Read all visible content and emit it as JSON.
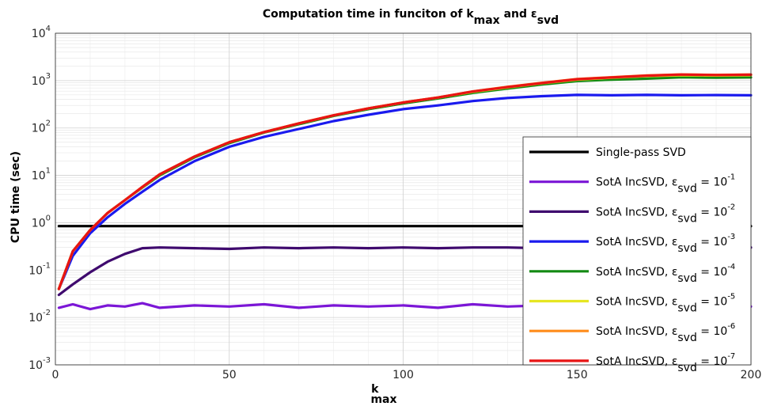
{
  "chart_data": {
    "type": "line",
    "title": {
      "main": "Computation time in funciton of k",
      "sub1": "max",
      "mid": " and ε",
      "sub2": "svd"
    },
    "xlabel": {
      "main": "k",
      "sub": "max"
    },
    "ylabel": "CPU time (sec)",
    "xlim": [
      0,
      200
    ],
    "ylim": [
      0.001,
      10000
    ],
    "yscale": "log",
    "grid": true,
    "legend_position": "right",
    "x_ticks": [
      "0",
      "50",
      "100",
      "150",
      "200"
    ],
    "y_ticks": [
      {
        "base": "10",
        "exp": "-3",
        "value": 0.001
      },
      {
        "base": "10",
        "exp": "-2",
        "value": 0.01
      },
      {
        "base": "10",
        "exp": "-1",
        "value": 0.1
      },
      {
        "base": "10",
        "exp": "0",
        "value": 1
      },
      {
        "base": "10",
        "exp": "1",
        "value": 10
      },
      {
        "base": "10",
        "exp": "2",
        "value": 100
      },
      {
        "base": "10",
        "exp": "3",
        "value": 1000
      },
      {
        "base": "10",
        "exp": "4",
        "value": 10000
      }
    ],
    "x": [
      1,
      5,
      10,
      15,
      20,
      25,
      30,
      40,
      50,
      60,
      70,
      80,
      90,
      100,
      110,
      120,
      130,
      140,
      150,
      160,
      170,
      180,
      190,
      200
    ],
    "series": [
      {
        "label": "Single-pass SVD",
        "sub": "",
        "exp": "",
        "color": "#000000",
        "values": [
          0.85,
          0.85,
          0.85,
          0.85,
          0.85,
          0.85,
          0.85,
          0.85,
          0.85,
          0.85,
          0.85,
          0.85,
          0.85,
          0.85,
          0.85,
          0.85,
          0.85,
          0.85,
          0.85,
          0.85,
          0.85,
          0.85,
          0.85,
          0.85
        ]
      },
      {
        "label": "SotA IncSVD, ε",
        "sub": "svd",
        "exp": "-1",
        "color": "#7b16d6",
        "values": [
          0.016,
          0.019,
          0.015,
          0.018,
          0.017,
          0.02,
          0.016,
          0.018,
          0.017,
          0.019,
          0.016,
          0.018,
          0.017,
          0.018,
          0.016,
          0.019,
          0.017,
          0.018,
          0.017,
          0.019,
          0.017,
          0.018,
          0.018,
          0.017
        ]
      },
      {
        "label": "SotA IncSVD, ε",
        "sub": "svd",
        "exp": "-2",
        "color": "#3f0a6e",
        "values": [
          0.03,
          0.05,
          0.09,
          0.15,
          0.22,
          0.29,
          0.3,
          0.29,
          0.28,
          0.3,
          0.29,
          0.3,
          0.29,
          0.3,
          0.29,
          0.3,
          0.3,
          0.29,
          0.3,
          0.3,
          0.29,
          0.3,
          0.3,
          0.3
        ]
      },
      {
        "label": "SotA IncSVD, ε",
        "sub": "svd",
        "exp": "-3",
        "color": "#1a1aee",
        "values": [
          0.04,
          0.2,
          0.6,
          1.3,
          2.5,
          4.5,
          8,
          20,
          40,
          65,
          95,
          140,
          190,
          250,
          300,
          370,
          430,
          470,
          500,
          490,
          500,
          490,
          495,
          490
        ]
      },
      {
        "label": "SotA IncSVD, ε",
        "sub": "svd",
        "exp": "-4",
        "color": "#138a13",
        "values": [
          0.04,
          0.25,
          0.7,
          1.6,
          3,
          5.5,
          10,
          24,
          48,
          80,
          120,
          180,
          250,
          330,
          420,
          550,
          680,
          830,
          980,
          1050,
          1100,
          1180,
          1150,
          1170
        ]
      },
      {
        "label": "SotA IncSVD, ε",
        "sub": "svd",
        "exp": "-5",
        "color": "#e6e622",
        "values": [
          0.04,
          0.25,
          0.7,
          1.6,
          3,
          5.6,
          10.5,
          25,
          50,
          82,
          125,
          185,
          260,
          345,
          440,
          580,
          720,
          880,
          1050,
          1150,
          1250,
          1300,
          1280,
          1300
        ]
      },
      {
        "label": "SotA IncSVD, ε",
        "sub": "svd",
        "exp": "-6",
        "color": "#ff8c1a",
        "values": [
          0.04,
          0.25,
          0.7,
          1.6,
          3,
          5.7,
          10.5,
          25,
          50,
          82,
          125,
          185,
          260,
          345,
          440,
          590,
          740,
          900,
          1080,
          1180,
          1280,
          1350,
          1320,
          1340
        ]
      },
      {
        "label": "SotA IncSVD, ε",
        "sub": "svd",
        "exp": "-7",
        "color": "#e81414",
        "values": [
          0.04,
          0.25,
          0.7,
          1.6,
          3,
          5.7,
          10.5,
          25,
          50,
          82,
          125,
          185,
          260,
          345,
          440,
          590,
          730,
          890,
          1070,
          1170,
          1270,
          1340,
          1310,
          1330
        ]
      }
    ]
  }
}
